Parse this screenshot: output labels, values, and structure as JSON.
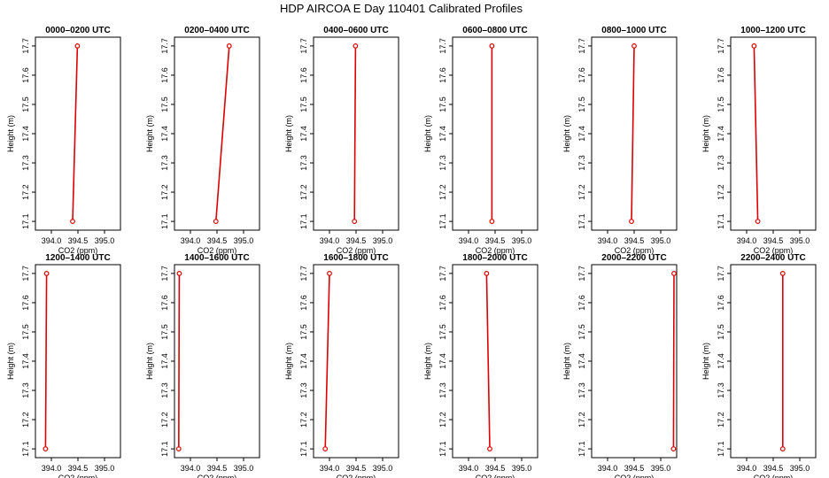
{
  "title": "HDP AIRCOA E  Day 110401  Calibrated Profiles",
  "colors": {
    "line": "#dd0000",
    "axis": "#000000"
  },
  "chart_data": [
    {
      "type": "line",
      "title": "0000–0200 UTC",
      "xlabel": "CO2 (ppm)",
      "ylabel": "Height (m)",
      "xlim": [
        393.7,
        395.3
      ],
      "ylim": [
        17.07,
        17.73
      ],
      "xticks": [
        "394.0",
        "394.5",
        "395.0"
      ],
      "yticks": [
        "17.1",
        "17.2",
        "17.3",
        "17.4",
        "17.5",
        "17.6",
        "17.7"
      ],
      "grid": false,
      "x": [
        394.4,
        394.49
      ],
      "y": [
        17.1,
        17.7
      ]
    },
    {
      "type": "line",
      "title": "0200–0400 UTC",
      "xlabel": "CO2 (ppm)",
      "ylabel": "Height (m)",
      "xlim": [
        393.7,
        395.3
      ],
      "ylim": [
        17.07,
        17.73
      ],
      "xticks": [
        "394.0",
        "394.5",
        "395.0"
      ],
      "yticks": [
        "17.1",
        "17.2",
        "17.3",
        "17.4",
        "17.5",
        "17.6",
        "17.7"
      ],
      "grid": false,
      "x": [
        394.48,
        394.73
      ],
      "y": [
        17.1,
        17.7
      ]
    },
    {
      "type": "line",
      "title": "0400–0600 UTC",
      "xlabel": "CO2 (ppm)",
      "ylabel": "Height (m)",
      "xlim": [
        393.7,
        395.3
      ],
      "ylim": [
        17.07,
        17.73
      ],
      "xticks": [
        "394.0",
        "394.5",
        "395.0"
      ],
      "yticks": [
        "17.1",
        "17.2",
        "17.3",
        "17.4",
        "17.5",
        "17.6",
        "17.7"
      ],
      "grid": false,
      "x": [
        394.47,
        394.49
      ],
      "y": [
        17.1,
        17.7
      ]
    },
    {
      "type": "line",
      "title": "0600–0800 UTC",
      "xlabel": "CO2 (ppm)",
      "ylabel": "Height (m)",
      "xlim": [
        393.7,
        395.3
      ],
      "ylim": [
        17.07,
        17.73
      ],
      "xticks": [
        "394.0",
        "394.5",
        "395.0"
      ],
      "yticks": [
        "17.1",
        "17.2",
        "17.3",
        "17.4",
        "17.5",
        "17.6",
        "17.7"
      ],
      "grid": false,
      "x": [
        394.44,
        394.44
      ],
      "y": [
        17.1,
        17.7
      ]
    },
    {
      "type": "line",
      "title": "0800–1000 UTC",
      "xlabel": "CO2 (ppm)",
      "ylabel": "Height (m)",
      "xlim": [
        393.7,
        395.3
      ],
      "ylim": [
        17.07,
        17.73
      ],
      "xticks": [
        "394.0",
        "394.5",
        "395.0"
      ],
      "yticks": [
        "17.1",
        "17.2",
        "17.3",
        "17.4",
        "17.5",
        "17.6",
        "17.7"
      ],
      "grid": false,
      "x": [
        394.45,
        394.5
      ],
      "y": [
        17.1,
        17.7
      ]
    },
    {
      "type": "line",
      "title": "1000–1200 UTC",
      "xlabel": "CO2 (ppm)",
      "ylabel": "Height (m)",
      "xlim": [
        393.7,
        395.3
      ],
      "ylim": [
        17.07,
        17.73
      ],
      "xticks": [
        "394.0",
        "394.5",
        "395.0"
      ],
      "yticks": [
        "17.1",
        "17.2",
        "17.3",
        "17.4",
        "17.5",
        "17.6",
        "17.7"
      ],
      "grid": false,
      "x": [
        394.21,
        394.14
      ],
      "y": [
        17.1,
        17.7
      ]
    },
    {
      "type": "line",
      "title": "1200–1400 UTC",
      "xlabel": "CO2 (ppm)",
      "ylabel": "Height (m)",
      "xlim": [
        393.7,
        395.3
      ],
      "ylim": [
        17.07,
        17.73
      ],
      "xticks": [
        "394.0",
        "394.5",
        "395.0"
      ],
      "yticks": [
        "17.1",
        "17.2",
        "17.3",
        "17.4",
        "17.5",
        "17.6",
        "17.7"
      ],
      "grid": false,
      "x": [
        393.89,
        393.91
      ],
      "y": [
        17.1,
        17.7
      ]
    },
    {
      "type": "line",
      "title": "1400–1600 UTC",
      "xlabel": "CO2 (ppm)",
      "ylabel": "Height (m)",
      "xlim": [
        393.7,
        395.3
      ],
      "ylim": [
        17.07,
        17.73
      ],
      "xticks": [
        "394.0",
        "394.5",
        "395.0"
      ],
      "yticks": [
        "17.1",
        "17.2",
        "17.3",
        "17.4",
        "17.5",
        "17.6",
        "17.7"
      ],
      "grid": false,
      "x": [
        393.78,
        393.79
      ],
      "y": [
        17.1,
        17.7
      ]
    },
    {
      "type": "line",
      "title": "1600–1800 UTC",
      "xlabel": "CO2 (ppm)",
      "ylabel": "Height (m)",
      "xlim": [
        393.7,
        395.3
      ],
      "ylim": [
        17.07,
        17.73
      ],
      "xticks": [
        "394.0",
        "394.5",
        "395.0"
      ],
      "yticks": [
        "17.1",
        "17.2",
        "17.3",
        "17.4",
        "17.5",
        "17.6",
        "17.7"
      ],
      "grid": false,
      "x": [
        393.92,
        394.0
      ],
      "y": [
        17.1,
        17.7
      ]
    },
    {
      "type": "line",
      "title": "1800–2000 UTC",
      "xlabel": "CO2 (ppm)",
      "ylabel": "Height (m)",
      "xlim": [
        393.7,
        395.3
      ],
      "ylim": [
        17.07,
        17.73
      ],
      "xticks": [
        "394.0",
        "394.5",
        "395.0"
      ],
      "yticks": [
        "17.1",
        "17.2",
        "17.3",
        "17.4",
        "17.5",
        "17.6",
        "17.7"
      ],
      "grid": false,
      "x": [
        394.4,
        394.34
      ],
      "y": [
        17.1,
        17.7
      ]
    },
    {
      "type": "line",
      "title": "2000–2200 UTC",
      "xlabel": "CO2 (ppm)",
      "ylabel": "Height (m)",
      "xlim": [
        393.7,
        395.3
      ],
      "ylim": [
        17.07,
        17.73
      ],
      "xticks": [
        "394.0",
        "394.5",
        "395.0"
      ],
      "yticks": [
        "17.1",
        "17.2",
        "17.3",
        "17.4",
        "17.5",
        "17.6",
        "17.7"
      ],
      "grid": false,
      "x": [
        395.24,
        395.25
      ],
      "y": [
        17.1,
        17.7
      ]
    },
    {
      "type": "line",
      "title": "2200–2400 UTC",
      "xlabel": "CO2 (ppm)",
      "ylabel": "Height (m)",
      "xlim": [
        393.7,
        395.3
      ],
      "ylim": [
        17.07,
        17.73
      ],
      "xticks": [
        "394.0",
        "394.5",
        "395.0"
      ],
      "yticks": [
        "17.1",
        "17.2",
        "17.3",
        "17.4",
        "17.5",
        "17.6",
        "17.7"
      ],
      "grid": false,
      "x": [
        394.68,
        394.68
      ],
      "y": [
        17.1,
        17.7
      ]
    }
  ]
}
